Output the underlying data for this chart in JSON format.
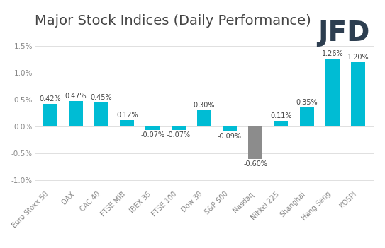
{
  "title": "Major Stock Indices (Daily Performance)",
  "categories": [
    "Euro Stoxx 50",
    "DAX",
    "CAC 40",
    "FTSE MIB",
    "IBEX 35",
    "FTSE 100",
    "Dow 30",
    "S&P 500",
    "Nasdaq",
    "Nikkei 225",
    "Shanghai",
    "Hang Seng",
    "KOSPI"
  ],
  "values": [
    0.42,
    0.47,
    0.45,
    0.12,
    -0.07,
    -0.07,
    0.3,
    -0.09,
    -0.6,
    0.11,
    0.35,
    1.26,
    1.2
  ],
  "bar_colors": [
    "#00BCD4",
    "#00BCD4",
    "#00BCD4",
    "#00BCD4",
    "#00BCD4",
    "#00BCD4",
    "#00BCD4",
    "#00BCD4",
    "#8C8C8C",
    "#00BCD4",
    "#00BCD4",
    "#00BCD4",
    "#00BCD4"
  ],
  "ylim": [
    -1.15,
    1.75
  ],
  "yticks": [
    -1.0,
    -0.5,
    0.0,
    0.5,
    1.0,
    1.5
  ],
  "ytick_labels": [
    "-1.0%",
    "-0.5%",
    "0.0%",
    "0.5%",
    "1.0%",
    "1.5%"
  ],
  "background_color": "#ffffff",
  "grid_color": "#e0e0e0",
  "title_fontsize": 14,
  "label_fontsize": 7,
  "value_fontsize": 7,
  "tick_fontsize": 7.5,
  "title_color": "#444444",
  "tick_color": "#888888",
  "value_label_color": "#444444",
  "jfd_text": "JFD",
  "jfd_color": "#2d3e50",
  "jfd_fontsize": 28
}
